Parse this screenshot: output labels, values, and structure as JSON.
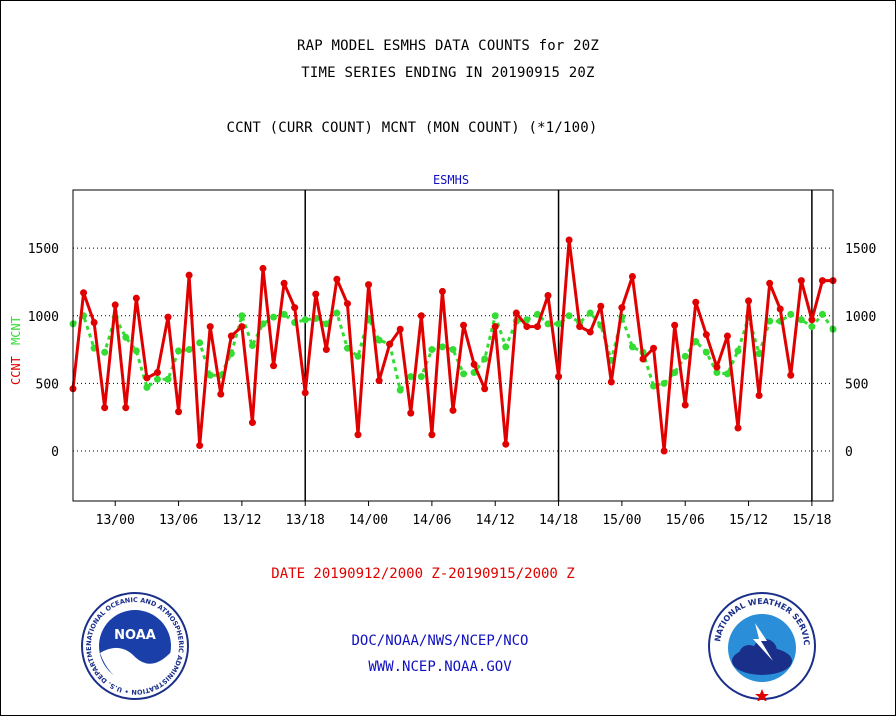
{
  "titles": {
    "line1": "RAP MODEL ESMHS DATA COUNTS for 20Z",
    "line2": "TIME SERIES ENDING IN 20190915 20Z",
    "line3": "CCNT (CURR COUNT) MCNT (MON COUNT) (*1/100)"
  },
  "footer": {
    "date_range": "DATE 20190912/2000 Z-20190915/2000 Z",
    "credit_line1": "DOC/NOAA/NWS/NCEP/NCO",
    "credit_line2": "WWW.NCEP.NOAA.GOV"
  },
  "logos": {
    "noaa_text": "NOAA",
    "noaa_ring": "NATIONAL OCEANIC AND ATMOSPHERIC ADMINISTRATION • U.S. DEPARTMENT OF COMMERCE •",
    "nws_ring": "NATIONAL WEATHER SERVICE"
  },
  "chart_data": {
    "type": "line",
    "title": "ESMHS",
    "ylabel_left_ccnt": "CCNT",
    "ylabel_left_mcnt": "MCNT",
    "y_ticks": [
      0,
      500,
      1000,
      1500
    ],
    "ylim": [
      -370,
      1930
    ],
    "x_ticks": [
      "13/00",
      "13/06",
      "13/12",
      "13/18",
      "14/00",
      "14/06",
      "14/12",
      "14/18",
      "15/00",
      "15/06",
      "15/12",
      "15/18"
    ],
    "x_day_separators": [
      "13/18",
      "14/18",
      "15/18"
    ],
    "grid": "horizontal dotted",
    "colors": {
      "ccnt": "#e00000",
      "mcnt": "#33dd33",
      "title": "#1010c0",
      "axis": "#000000"
    },
    "series": [
      {
        "name": "CCNT",
        "style": "solid line with dots",
        "values": [
          460,
          1170,
          950,
          320,
          1080,
          320,
          1130,
          540,
          580,
          990,
          290,
          1300,
          40,
          920,
          420,
          850,
          920,
          210,
          1350,
          630,
          1240,
          1060,
          430,
          1160,
          750,
          1270,
          1090,
          120,
          1230,
          520,
          790,
          900,
          280,
          1000,
          120,
          1180,
          300,
          930,
          640,
          460,
          920,
          50,
          1020,
          920,
          920,
          1150,
          550,
          1560,
          920,
          880,
          1070,
          510,
          1060,
          1290,
          680,
          760,
          0,
          930,
          340,
          1100,
          860,
          620,
          850,
          170,
          1110,
          410,
          1240,
          1050,
          560,
          1260,
          970,
          1260,
          1260
        ]
      },
      {
        "name": "MCNT",
        "style": "dashed line with dots",
        "values": [
          940,
          1000,
          760,
          730,
          990,
          840,
          740,
          470,
          530,
          530,
          740,
          750,
          800,
          560,
          560,
          720,
          1000,
          780,
          940,
          990,
          1010,
          950,
          970,
          980,
          940,
          1020,
          760,
          700,
          980,
          820,
          790,
          450,
          550,
          550,
          750,
          770,
          750,
          570,
          580,
          680,
          1000,
          770,
          960,
          970,
          1010,
          940,
          940,
          1000,
          950,
          1020,
          930,
          670,
          990,
          770,
          730,
          480,
          500,
          580,
          700,
          810,
          730,
          580,
          570,
          740,
          990,
          720,
          960,
          960,
          1010,
          970,
          920,
          1010,
          900
        ]
      }
    ]
  }
}
